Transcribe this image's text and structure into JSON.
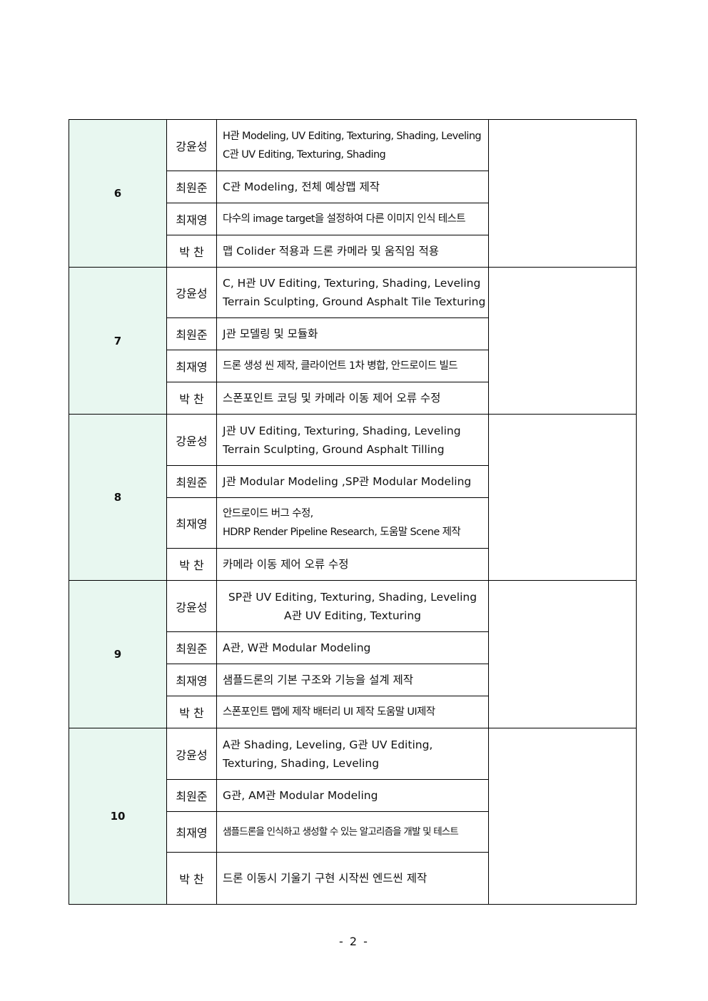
{
  "weeks": [
    {
      "num": "6",
      "rows": [
        {
          "name": "강윤성",
          "lines": [
            "H관 Modeling, UV Editing, Texturing, Shading, Leveling",
            "C관 UV Editing, Texturing, Shading"
          ]
        },
        {
          "name": "최원준",
          "lines": [
            "C관 Modeling, 전체 예상맵 제작"
          ]
        },
        {
          "name": "최재영",
          "lines": [
            "다수의 image target을 설정하여 다른 이미지 인식 테스트"
          ]
        },
        {
          "name": "박 찬",
          "lines": [
            "맵 Colider 적용과 드론 카메라 및 움직임 적용"
          ]
        }
      ]
    },
    {
      "num": "7",
      "rows": [
        {
          "name": "강윤성",
          "lines": [
            "C, H관 UV Editing, Texturing, Shading, Leveling",
            "Terrain Sculpting, Ground Asphalt Tile Texturing"
          ]
        },
        {
          "name": "최원준",
          "lines": [
            "J관 모델링 및 모듈화"
          ]
        },
        {
          "name": "최재영",
          "lines": [
            "드론 생성 씬 제작, 클라이언트 1차 병합, 안드로이드 빌드"
          ]
        },
        {
          "name": "박 찬",
          "lines": [
            "스폰포인트 코딩 및 카메라 이동 제어 오류 수정"
          ]
        }
      ]
    },
    {
      "num": "8",
      "rows": [
        {
          "name": "강윤성",
          "lines": [
            "J관 UV Editing, Texturing, Shading, Leveling",
            "Terrain Sculpting, Ground Asphalt Tilling"
          ]
        },
        {
          "name": "최원준",
          "lines": [
            "J관 Modular Modeling ,SP관 Modular Modeling"
          ]
        },
        {
          "name": "최재영",
          "lines": [
            "안드로이드 버그 수정,",
            "HDRP Render Pipeline Research, 도움말 Scene 제작"
          ]
        },
        {
          "name": "박 찬",
          "lines": [
            "카메라 이동 제어 오류 수정"
          ]
        }
      ]
    },
    {
      "num": "9",
      "rows": [
        {
          "name": "강윤성",
          "lines": [
            "SP관 UV Editing, Texturing, Shading, Leveling",
            "A관 UV Editing, Texturing"
          ]
        },
        {
          "name": "최원준",
          "lines": [
            "A관, W관 Modular Modeling"
          ]
        },
        {
          "name": "최재영",
          "lines": [
            "샘플드론의 기본 구조와 기능을 설계 제작"
          ]
        },
        {
          "name": "박 찬",
          "lines": [
            "스폰포인트 맵에 제작 배터리 UI 제작 도움말 UI제작"
          ]
        }
      ]
    },
    {
      "num": "10",
      "rows": [
        {
          "name": "강윤성",
          "lines": [
            "A관 Shading, Leveling, G관 UV Editing,",
            "Texturing, Shading, Leveling"
          ]
        },
        {
          "name": "최원준",
          "lines": [
            "G관, AM관 Modular Modeling"
          ]
        },
        {
          "name": "최재영",
          "lines": [
            "샘플드론을 인식하고 생성할 수 있는 알고리즘을 개발 및 테스트"
          ]
        },
        {
          "name": "박 찬",
          "lines": [
            "드론 이동시 기울기 구현 시작씬 엔드씬 제작"
          ]
        }
      ]
    }
  ],
  "page_number": "- 2 -"
}
